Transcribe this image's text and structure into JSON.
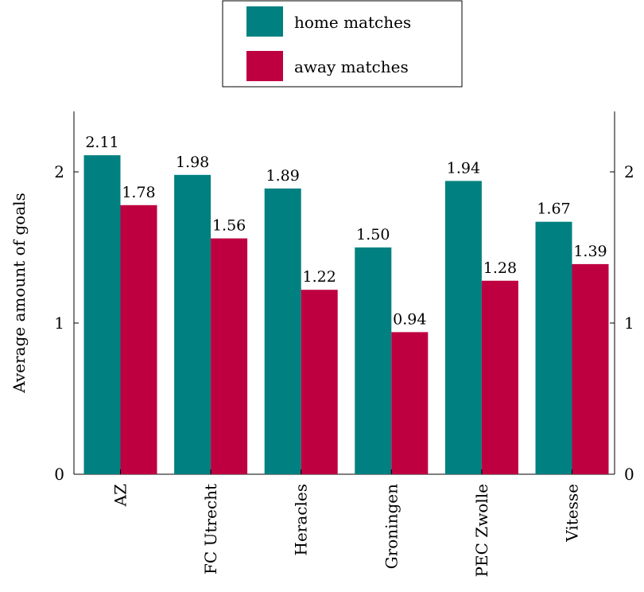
{
  "colors": {
    "home": "#008080",
    "away": "#bf0040"
  },
  "chart_data": {
    "type": "bar",
    "categories": [
      "AZ",
      "FC Utrecht",
      "Heracles",
      "Groningen",
      "PEC Zwolle",
      "Vitesse"
    ],
    "series": [
      {
        "name": "home matches",
        "values": [
          2.11,
          1.98,
          1.89,
          1.5,
          1.94,
          1.67
        ],
        "labels": [
          "2.11",
          "1.98",
          "1.89",
          "1.50",
          "1.94",
          "1.67"
        ]
      },
      {
        "name": "away matches",
        "values": [
          1.78,
          1.56,
          1.22,
          0.94,
          1.28,
          1.39
        ],
        "labels": [
          "1.78",
          "1.56",
          "1.22",
          "0.94",
          "1.28",
          "1.39"
        ]
      }
    ],
    "ylabel": "Average amount of goals",
    "xlabel": "",
    "ylim": [
      0,
      2.4
    ],
    "yticks": [
      0,
      1,
      2
    ],
    "legend_position": "top-center",
    "grid": false
  }
}
